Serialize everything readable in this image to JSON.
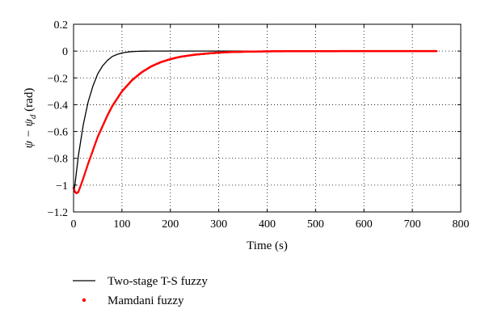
{
  "chart_data": {
    "type": "line",
    "xlabel": "Time (s)",
    "ylabel_parts": {
      "main": "ψ − ψ",
      "subscript": "d",
      "unit": " (rad)"
    },
    "xlim": [
      0,
      800
    ],
    "ylim": [
      -1.2,
      0.2
    ],
    "xticks": [
      0,
      100,
      200,
      300,
      400,
      500,
      600,
      700,
      800
    ],
    "yticks": [
      0.2,
      0,
      -0.2,
      -0.4,
      -0.6,
      -0.8,
      -1,
      -1.2
    ],
    "ytick_labels": [
      "0.2",
      "0",
      "−0.2",
      "−0.4",
      "−0.6",
      "−0.8",
      "−1",
      "−1.2"
    ],
    "grid": "dotted",
    "legend_placement": "below",
    "series": [
      {
        "name": "Two-stage T-S fuzzy",
        "style": "line",
        "color": "#000000",
        "x": [
          0,
          2,
          5,
          10,
          20,
          30,
          40,
          50,
          60,
          70,
          80,
          90,
          100,
          110,
          120,
          130,
          140,
          150,
          160,
          200,
          300,
          400,
          500,
          600,
          700,
          750
        ],
        "y": [
          -1.05,
          -1.02,
          -0.93,
          -0.78,
          -0.55,
          -0.38,
          -0.26,
          -0.17,
          -0.11,
          -0.07,
          -0.04,
          -0.025,
          -0.014,
          -0.008,
          -0.004,
          -0.002,
          -0.001,
          -0.0005,
          0,
          0,
          0,
          0,
          0,
          0,
          0,
          0
        ]
      },
      {
        "name": "Mamdani fuzzy",
        "style": "dots",
        "color": "#ff0000",
        "x": [
          0,
          3,
          6,
          10,
          15,
          20,
          30,
          40,
          50,
          60,
          70,
          80,
          90,
          100,
          120,
          140,
          160,
          180,
          200,
          220,
          250,
          280,
          300,
          320,
          350,
          380,
          400,
          450,
          500,
          550,
          600,
          650,
          700,
          750
        ],
        "y": [
          -1.02,
          -1.05,
          -1.06,
          -1.05,
          -1.0,
          -0.95,
          -0.84,
          -0.74,
          -0.64,
          -0.56,
          -0.48,
          -0.41,
          -0.355,
          -0.3,
          -0.22,
          -0.16,
          -0.115,
          -0.083,
          -0.06,
          -0.043,
          -0.027,
          -0.017,
          -0.012,
          -0.008,
          -0.005,
          -0.003,
          -0.002,
          -0.001,
          -0.0005,
          0,
          0,
          0,
          0,
          0
        ]
      }
    ]
  }
}
